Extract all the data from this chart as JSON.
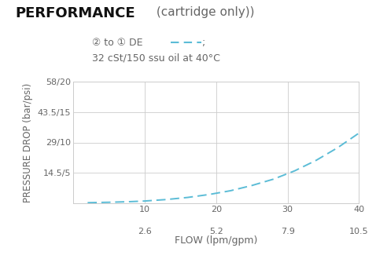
{
  "title_bold": "PERFORMANCE",
  "title_normal": " (cartridge only))",
  "legend_line1a": "② to ① DE ",
  "legend_line1b": "––;",
  "legend_line2": "32 cSt/150 ssu oil at 40°C",
  "ylabel": "PRESSURE DROP (bar/psi)",
  "xlabel": "FLOW (lpm/gpm)",
  "yticks": [
    0,
    14.5,
    29,
    43.5,
    58
  ],
  "ytick_labels": [
    "",
    "14.5/5",
    "29/10",
    "43.5/15",
    "58/20"
  ],
  "xticks_lpm": [
    0,
    10,
    20,
    30,
    40
  ],
  "xtick_labels_top": [
    "",
    "10",
    "20",
    "30",
    "40"
  ],
  "xtick_labels_bot": [
    "",
    "2.6",
    "5.2",
    "7.9",
    "10.5"
  ],
  "xlim": [
    0,
    40
  ],
  "ylim": [
    0,
    58
  ],
  "curve_color": "#5bbcd6",
  "curve_x": [
    2,
    5,
    8,
    10,
    13,
    16,
    19,
    22,
    25,
    28,
    31,
    34,
    37,
    40
  ],
  "curve_y": [
    0.3,
    0.5,
    0.8,
    1.1,
    1.8,
    2.8,
    4.2,
    6.0,
    8.5,
    11.5,
    15.5,
    20.5,
    26.5,
    33.5
  ],
  "grid_color": "#cccccc",
  "background_color": "#ffffff",
  "text_color": "#666666",
  "title_color": "#111111"
}
